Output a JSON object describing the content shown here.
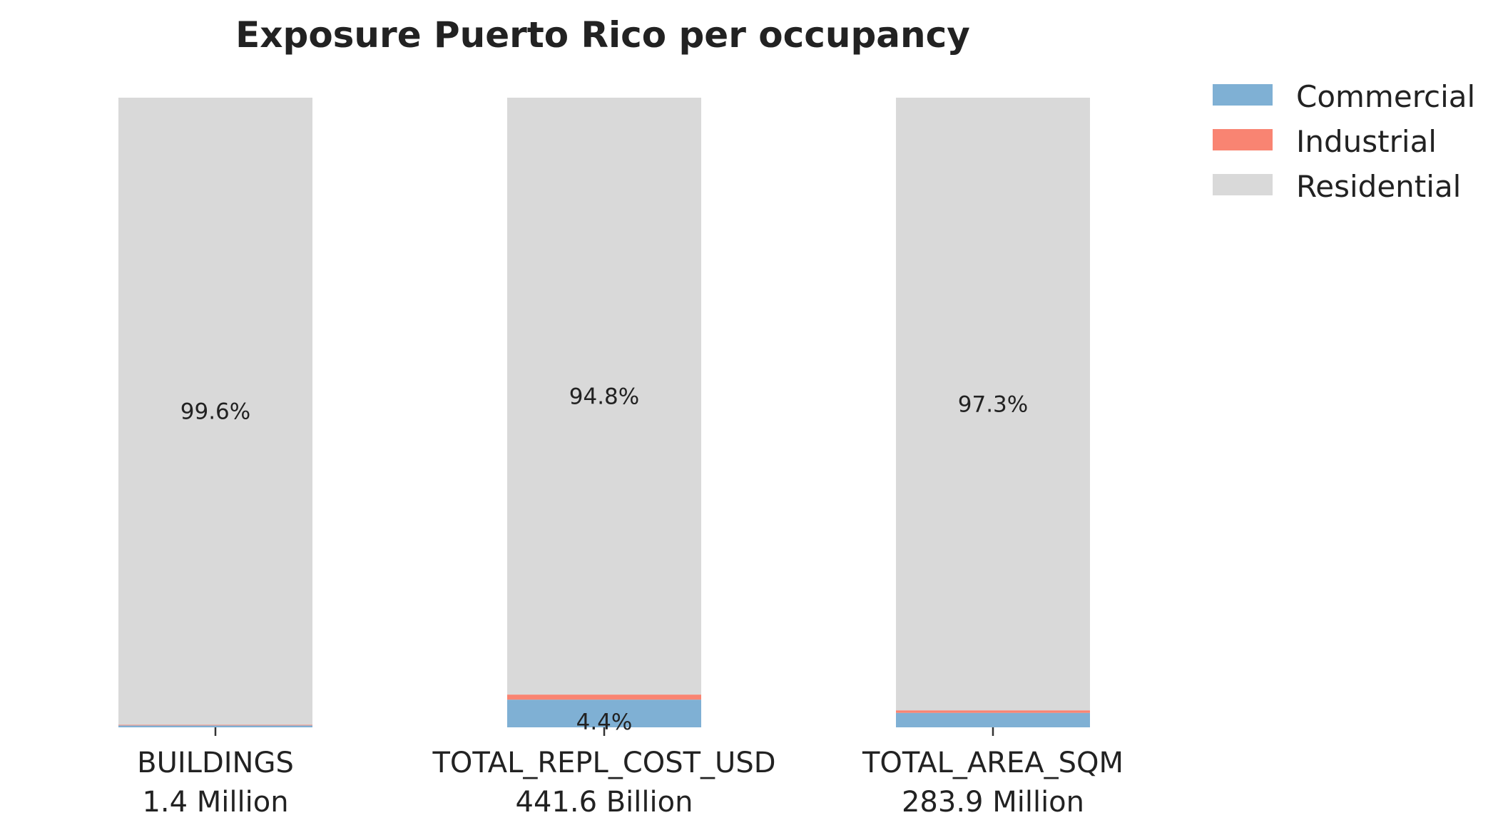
{
  "chart_data": {
    "type": "bar",
    "stacked": true,
    "title": "Exposure Puerto Rico per occupancy",
    "categories": [
      "BUILDINGS",
      "TOTAL_REPL_COST_USD",
      "TOTAL_AREA_SQM"
    ],
    "category_totals": [
      "1.4 Million",
      "441.6 Billion",
      "283.9 Million"
    ],
    "ylim": [
      0,
      100
    ],
    "grid": false,
    "legend_position": "top-right",
    "series": [
      {
        "name": "Commercial",
        "color": "#7fb0d4",
        "values": [
          0.3,
          4.4,
          2.3
        ]
      },
      {
        "name": "Industrial",
        "color": "#f98472",
        "values": [
          0.1,
          0.8,
          0.4
        ]
      },
      {
        "name": "Residential",
        "color": "#d9d9d9",
        "values": [
          99.6,
          94.8,
          97.3
        ]
      }
    ],
    "data_labels": [
      {
        "category": 0,
        "series": "Residential",
        "text": "99.6%"
      },
      {
        "category": 1,
        "series": "Residential",
        "text": "94.8%"
      },
      {
        "category": 2,
        "series": "Residential",
        "text": "97.3%"
      },
      {
        "category": 1,
        "series": "Commercial",
        "text": "4.4%"
      }
    ]
  }
}
